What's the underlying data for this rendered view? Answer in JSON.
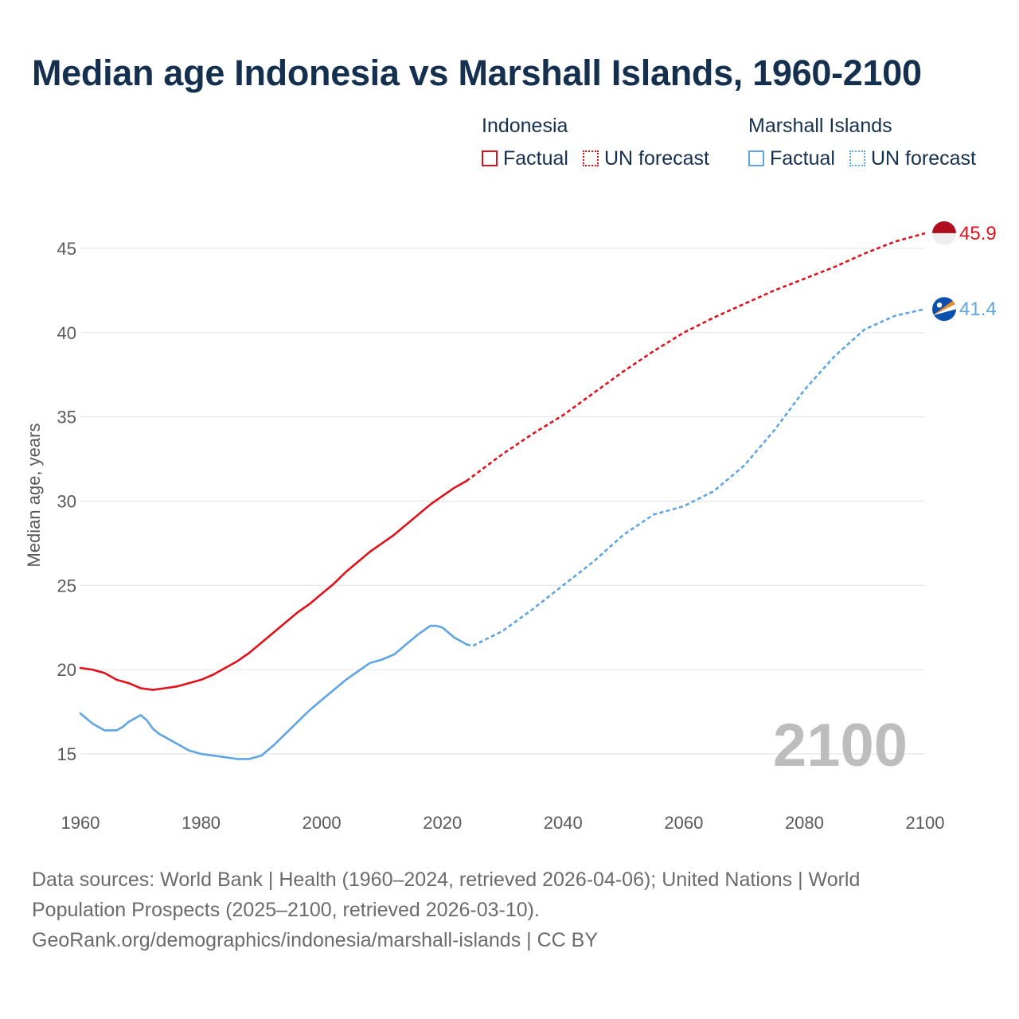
{
  "title": "Median age Indonesia vs Marshall Islands, 1960-2100",
  "legend": {
    "groups": [
      {
        "name": "Indonesia",
        "factual_label": "Factual",
        "forecast_label": "UN forecast",
        "color": "#e3111b"
      },
      {
        "name": "Marshall Islands",
        "factual_label": "Factual",
        "forecast_label": "UN forecast",
        "color": "#5fa4e3"
      }
    ]
  },
  "footer": {
    "line1": "Data sources: World Bank | Health (1960–2024, retrieved 2026-04-06); United Nations | World",
    "line2": "Population Prospects (2025–2100, retrieved 2026-03-10).",
    "line3": "GeoRank.org/demographics/indonesia/marshall-islands | CC BY"
  },
  "chart_data": {
    "type": "line",
    "title": "Median age Indonesia vs Marshall Islands, 1960-2100",
    "xlabel": "",
    "ylabel": "Median age, years",
    "xlim": [
      1960,
      2100
    ],
    "ylim": [
      12.5,
      47.5
    ],
    "x_ticks": [
      1960,
      1980,
      2000,
      2020,
      2040,
      2060,
      2080,
      2100
    ],
    "y_ticks": [
      15,
      20,
      25,
      30,
      35,
      40,
      45
    ],
    "grid": true,
    "current_year": "2100",
    "series": [
      {
        "name": "Indonesia",
        "color": "#e3111b",
        "end_label": "45.9",
        "flag": "indonesia-flag",
        "factual": {
          "x": [
            1960,
            1962,
            1964,
            1966,
            1968,
            1970,
            1972,
            1974,
            1976,
            1978,
            1980,
            1982,
            1984,
            1986,
            1988,
            1990,
            1992,
            1994,
            1996,
            1998,
            2000,
            2002,
            2004,
            2006,
            2008,
            2010,
            2012,
            2014,
            2016,
            2018,
            2020,
            2022,
            2024
          ],
          "y": [
            20.1,
            20.0,
            19.8,
            19.4,
            19.2,
            18.9,
            18.8,
            18.9,
            19.0,
            19.2,
            19.4,
            19.7,
            20.1,
            20.5,
            21.0,
            21.6,
            22.2,
            22.8,
            23.4,
            23.9,
            24.5,
            25.1,
            25.8,
            26.4,
            27.0,
            27.5,
            28.0,
            28.6,
            29.2,
            29.8,
            30.3,
            30.8,
            31.2
          ]
        },
        "forecast": {
          "x": [
            2024,
            2030,
            2035,
            2040,
            2045,
            2050,
            2055,
            2060,
            2065,
            2070,
            2075,
            2080,
            2085,
            2090,
            2095,
            2100
          ],
          "y": [
            31.2,
            32.8,
            34.0,
            35.1,
            36.4,
            37.7,
            38.9,
            40.0,
            40.9,
            41.7,
            42.5,
            43.2,
            43.9,
            44.7,
            45.4,
            45.9
          ]
        }
      },
      {
        "name": "Marshall Islands",
        "color": "#5fa4e3",
        "end_label": "41.4",
        "flag": "marshall-islands-flag",
        "factual": {
          "x": [
            1960,
            1962,
            1964,
            1966,
            1967,
            1968,
            1970,
            1971,
            1972,
            1973,
            1974,
            1976,
            1978,
            1980,
            1982,
            1984,
            1986,
            1988,
            1990,
            1992,
            1994,
            1996,
            1998,
            2000,
            2002,
            2004,
            2006,
            2008,
            2010,
            2012,
            2014,
            2016,
            2018,
            2019,
            2020,
            2021,
            2022,
            2024
          ],
          "y": [
            17.4,
            16.8,
            16.4,
            16.4,
            16.6,
            16.9,
            17.3,
            17.0,
            16.5,
            16.2,
            16.0,
            15.6,
            15.2,
            15.0,
            14.9,
            14.8,
            14.7,
            14.7,
            14.9,
            15.5,
            16.2,
            16.9,
            17.6,
            18.2,
            18.8,
            19.4,
            19.9,
            20.4,
            20.6,
            20.9,
            21.5,
            22.1,
            22.6,
            22.6,
            22.5,
            22.2,
            21.9,
            21.5
          ]
        },
        "forecast": {
          "x": [
            2024,
            2025,
            2030,
            2035,
            2040,
            2045,
            2050,
            2055,
            2058,
            2060,
            2065,
            2070,
            2075,
            2080,
            2085,
            2090,
            2095,
            2100
          ],
          "y": [
            21.5,
            21.4,
            22.3,
            23.6,
            25.0,
            26.4,
            28.0,
            29.2,
            29.5,
            29.7,
            30.6,
            32.1,
            34.2,
            36.6,
            38.6,
            40.2,
            41.0,
            41.4
          ]
        }
      }
    ]
  }
}
